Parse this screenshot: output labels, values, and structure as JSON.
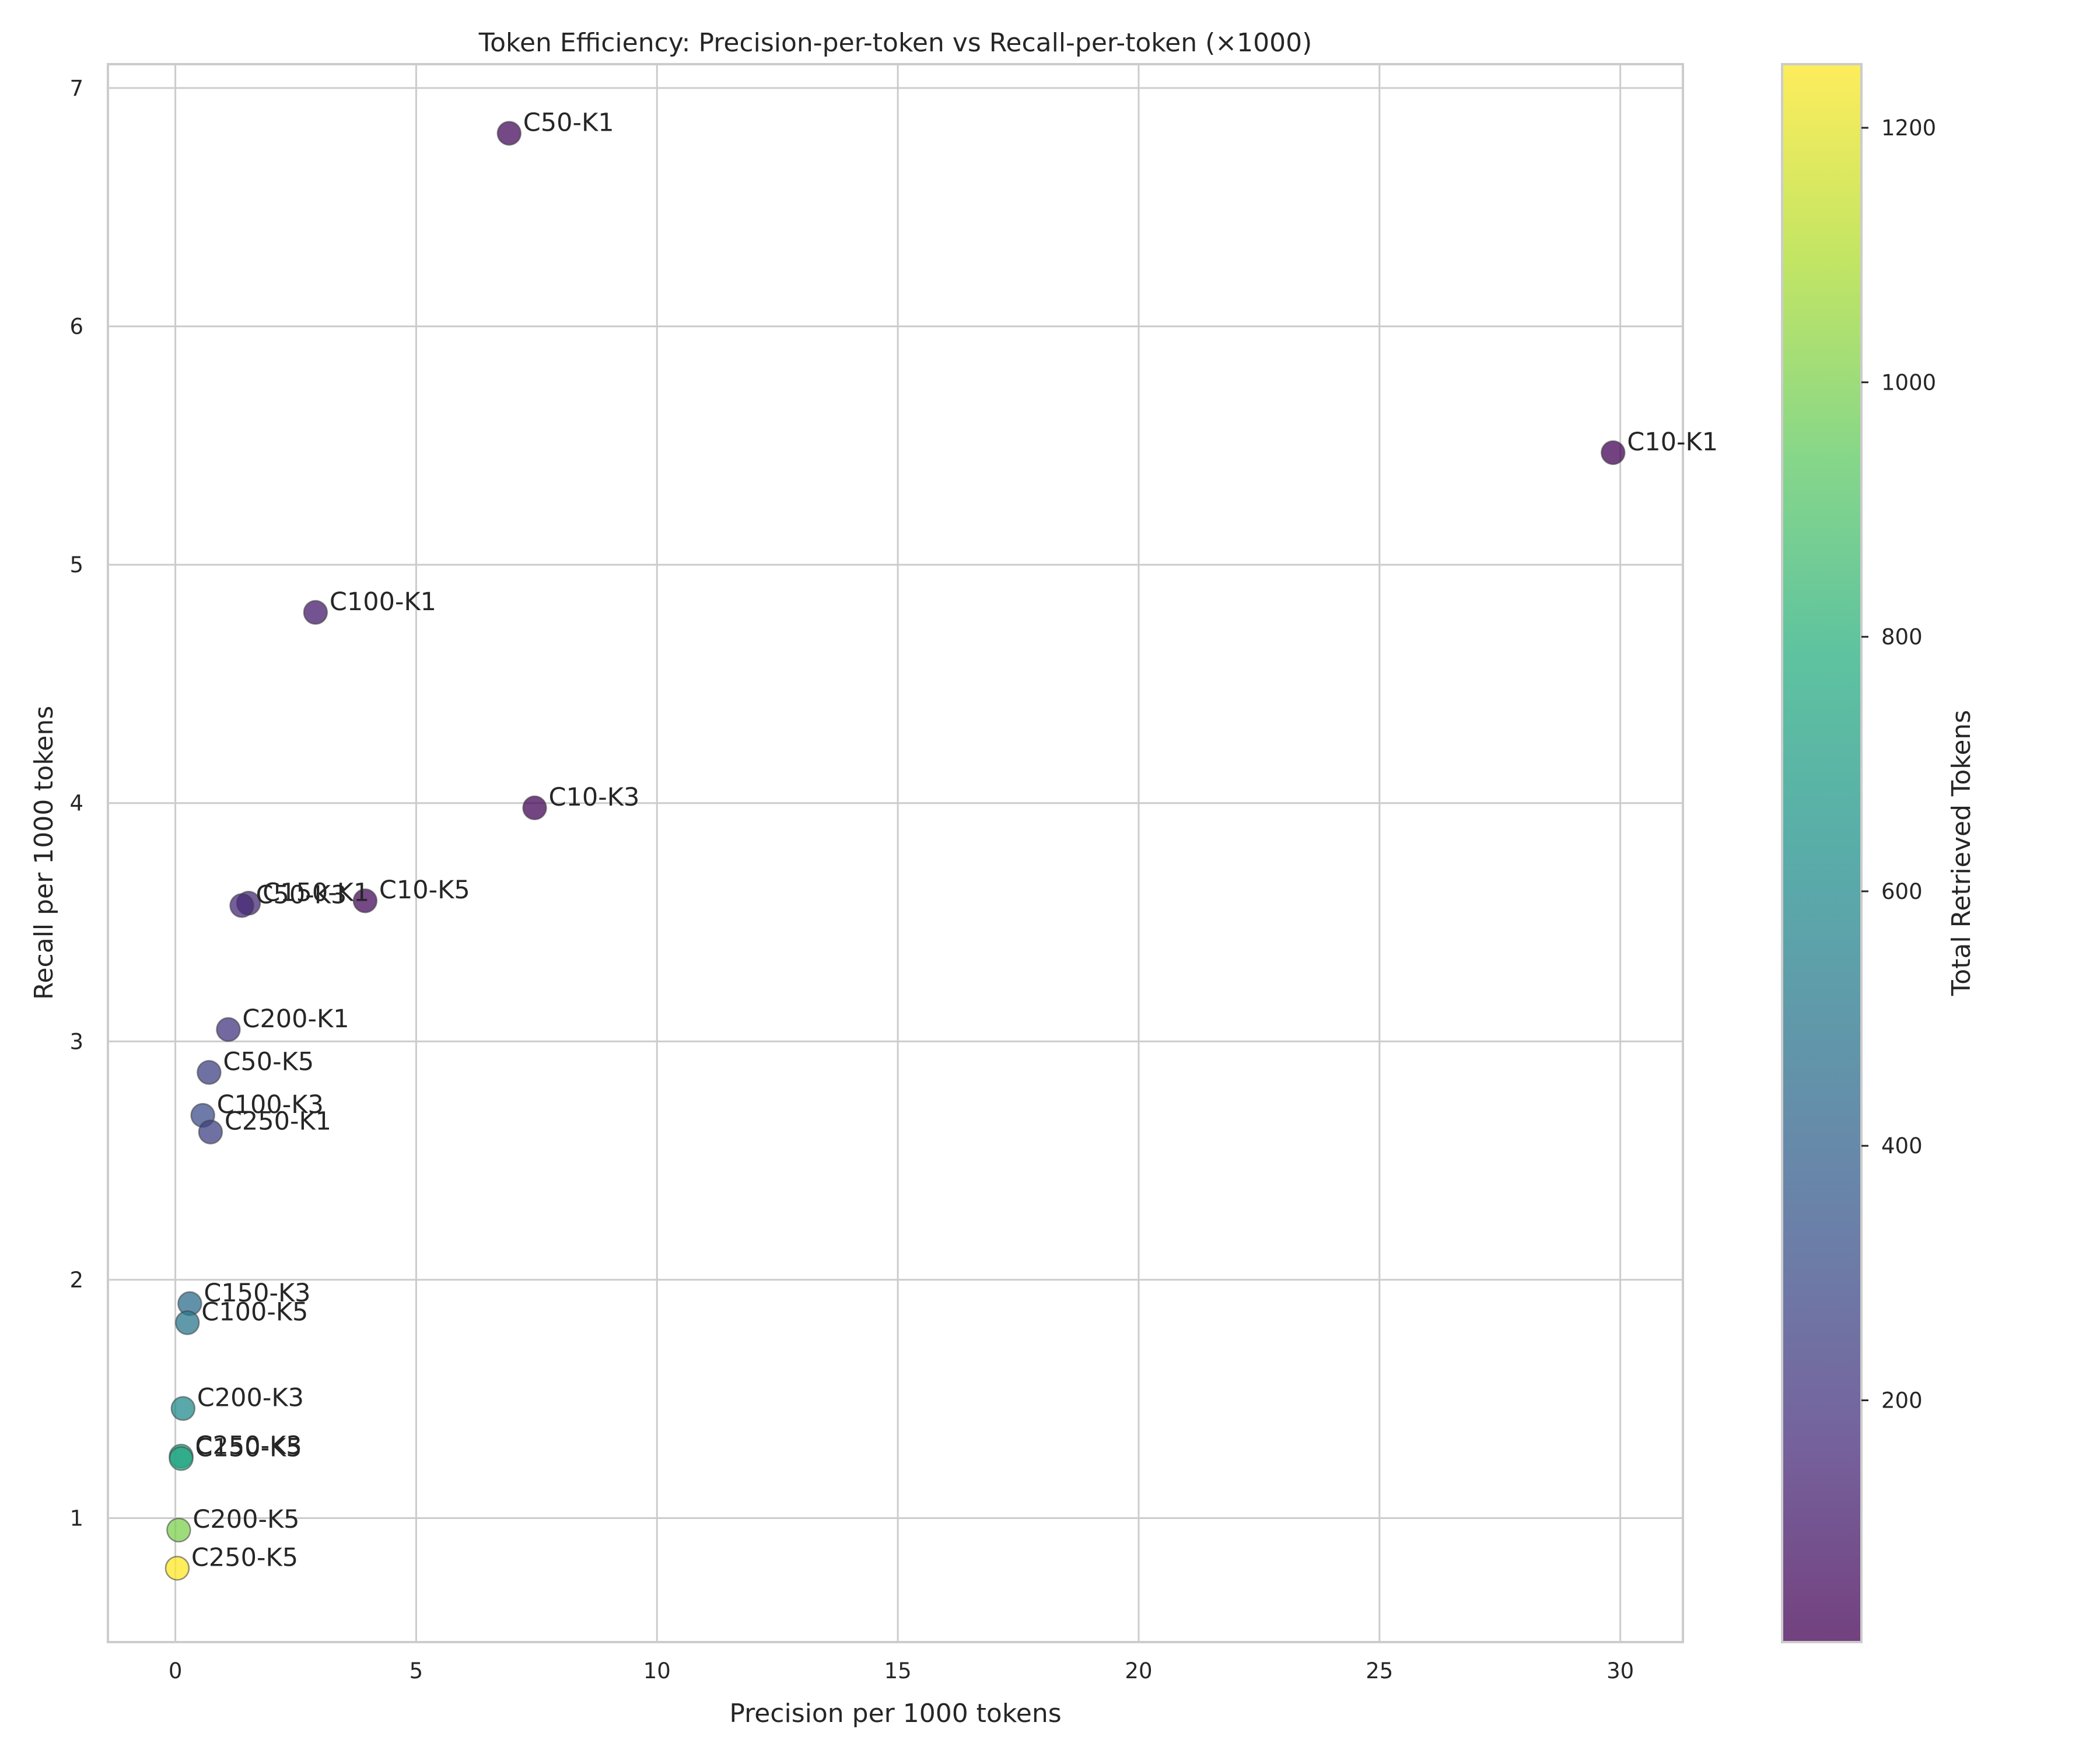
{
  "chart_data": {
    "type": "scatter",
    "title": "Token Efficiency: Precision-per-token vs Recall-per-token (×1000)",
    "xlabel": "Precision per 1000 tokens",
    "ylabel": "Recall per 1000 tokens",
    "xlim": [
      -1.4,
      31.3
    ],
    "ylim": [
      0.48,
      7.1
    ],
    "xticks": [
      0,
      5,
      10,
      15,
      20,
      25,
      30
    ],
    "yticks": [
      1,
      2,
      3,
      4,
      5,
      6,
      7
    ],
    "grid": true,
    "colorbar": {
      "label": "Total Retrieved Tokens",
      "colormap": "viridis",
      "range": [
        10,
        1250
      ],
      "ticks": [
        200,
        400,
        600,
        800,
        1000,
        1200
      ]
    },
    "points": [
      {
        "label": "C10-K1",
        "x": 29.85,
        "y": 5.47,
        "tokens": 20
      },
      {
        "label": "C50-K1",
        "x": 6.93,
        "y": 6.81,
        "tokens": 50
      },
      {
        "label": "C100-K1",
        "x": 2.91,
        "y": 4.8,
        "tokens": 100
      },
      {
        "label": "C10-K3",
        "x": 7.46,
        "y": 3.98,
        "tokens": 30
      },
      {
        "label": "C10-K5",
        "x": 3.94,
        "y": 3.59,
        "tokens": 50
      },
      {
        "label": "C150-K1",
        "x": 1.52,
        "y": 3.58,
        "tokens": 150
      },
      {
        "label": "C50-K3",
        "x": 1.38,
        "y": 3.57,
        "tokens": 150
      },
      {
        "label": "C200-K1",
        "x": 1.1,
        "y": 3.05,
        "tokens": 200
      },
      {
        "label": "C50-K5",
        "x": 0.7,
        "y": 2.87,
        "tokens": 250
      },
      {
        "label": "C100-K3",
        "x": 0.57,
        "y": 2.69,
        "tokens": 300
      },
      {
        "label": "C250-K1",
        "x": 0.73,
        "y": 2.62,
        "tokens": 250
      },
      {
        "label": "C150-K3",
        "x": 0.3,
        "y": 1.9,
        "tokens": 450
      },
      {
        "label": "C100-K5",
        "x": 0.25,
        "y": 1.82,
        "tokens": 500
      },
      {
        "label": "C200-K3",
        "x": 0.16,
        "y": 1.46,
        "tokens": 600
      },
      {
        "label": "C250-K3",
        "x": 0.12,
        "y": 1.26,
        "tokens": 750
      },
      {
        "label": "C150-K5",
        "x": 0.12,
        "y": 1.25,
        "tokens": 750
      },
      {
        "label": "C200-K5",
        "x": 0.07,
        "y": 0.95,
        "tokens": 1000
      },
      {
        "label": "C250-K5",
        "x": 0.04,
        "y": 0.79,
        "tokens": 1250
      }
    ]
  }
}
